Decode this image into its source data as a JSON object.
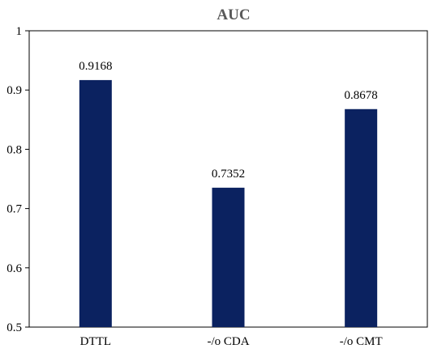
{
  "chart_data": {
    "type": "bar",
    "title": "AUC",
    "xlabel": "",
    "ylabel": "",
    "categories": [
      "DTTL",
      "-/o CDA",
      "-/o CMT"
    ],
    "values": [
      0.9168,
      0.7352,
      0.8678
    ],
    "data_labels": [
      "0.9168",
      "0.7352",
      "0.8678"
    ],
    "ylim": [
      0.5,
      1
    ],
    "y_ticks": [
      "0.5",
      "0.6",
      "0.7",
      "0.8",
      "0.9",
      "1"
    ],
    "grid": false,
    "legend": "none",
    "bar_color": "#0b2260",
    "axis_color": "#000000"
  }
}
